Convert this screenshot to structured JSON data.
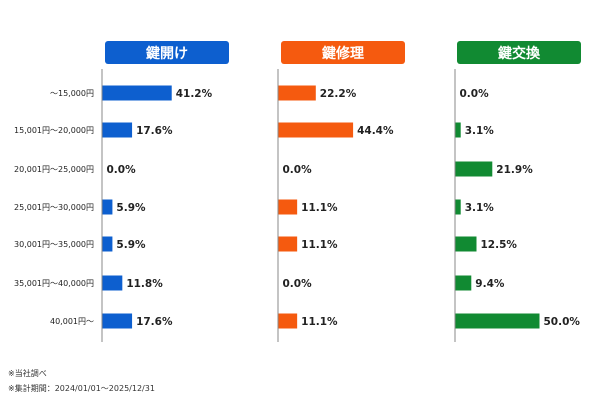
{
  "chart_data": {
    "type": "bar",
    "orientation": "horizontal",
    "categories": [
      "～15,000円",
      "15,001円～20,000円",
      "20,001円～25,000円",
      "25,001円～30,000円",
      "30,001円～35,000円",
      "35,001円～40,000円",
      "40,001円～"
    ],
    "series": [
      {
        "name": "鍵開け",
        "color": "#0d5fcf",
        "values": [
          41.2,
          17.6,
          0.0,
          5.9,
          5.9,
          11.8,
          17.6
        ],
        "labels": [
          "41.2%",
          "17.6%",
          "0.0%",
          "5.9%",
          "5.9%",
          "11.8%",
          "17.6%"
        ]
      },
      {
        "name": "鍵修理",
        "color": "#f55a0f",
        "values": [
          22.2,
          44.4,
          0.0,
          11.1,
          11.1,
          0.0,
          11.1
        ],
        "labels": [
          "22.2%",
          "44.4%",
          "0.0%",
          "11.1%",
          "11.1%",
          "0.0%",
          "11.1%"
        ]
      },
      {
        "name": "鍵交換",
        "color": "#118a32",
        "values": [
          0.0,
          3.1,
          21.9,
          3.1,
          12.5,
          9.4,
          50.0
        ],
        "labels": [
          "0.0%",
          "3.1%",
          "21.9%",
          "3.1%",
          "12.5%",
          "9.4%",
          "50.0%"
        ]
      }
    ],
    "value_unit": "%",
    "xlim": [
      0,
      50
    ],
    "grid": false,
    "legend": "none"
  },
  "notes": [
    "※当社調べ",
    "※集計期間：2024/01/01～2025/12/31"
  ]
}
